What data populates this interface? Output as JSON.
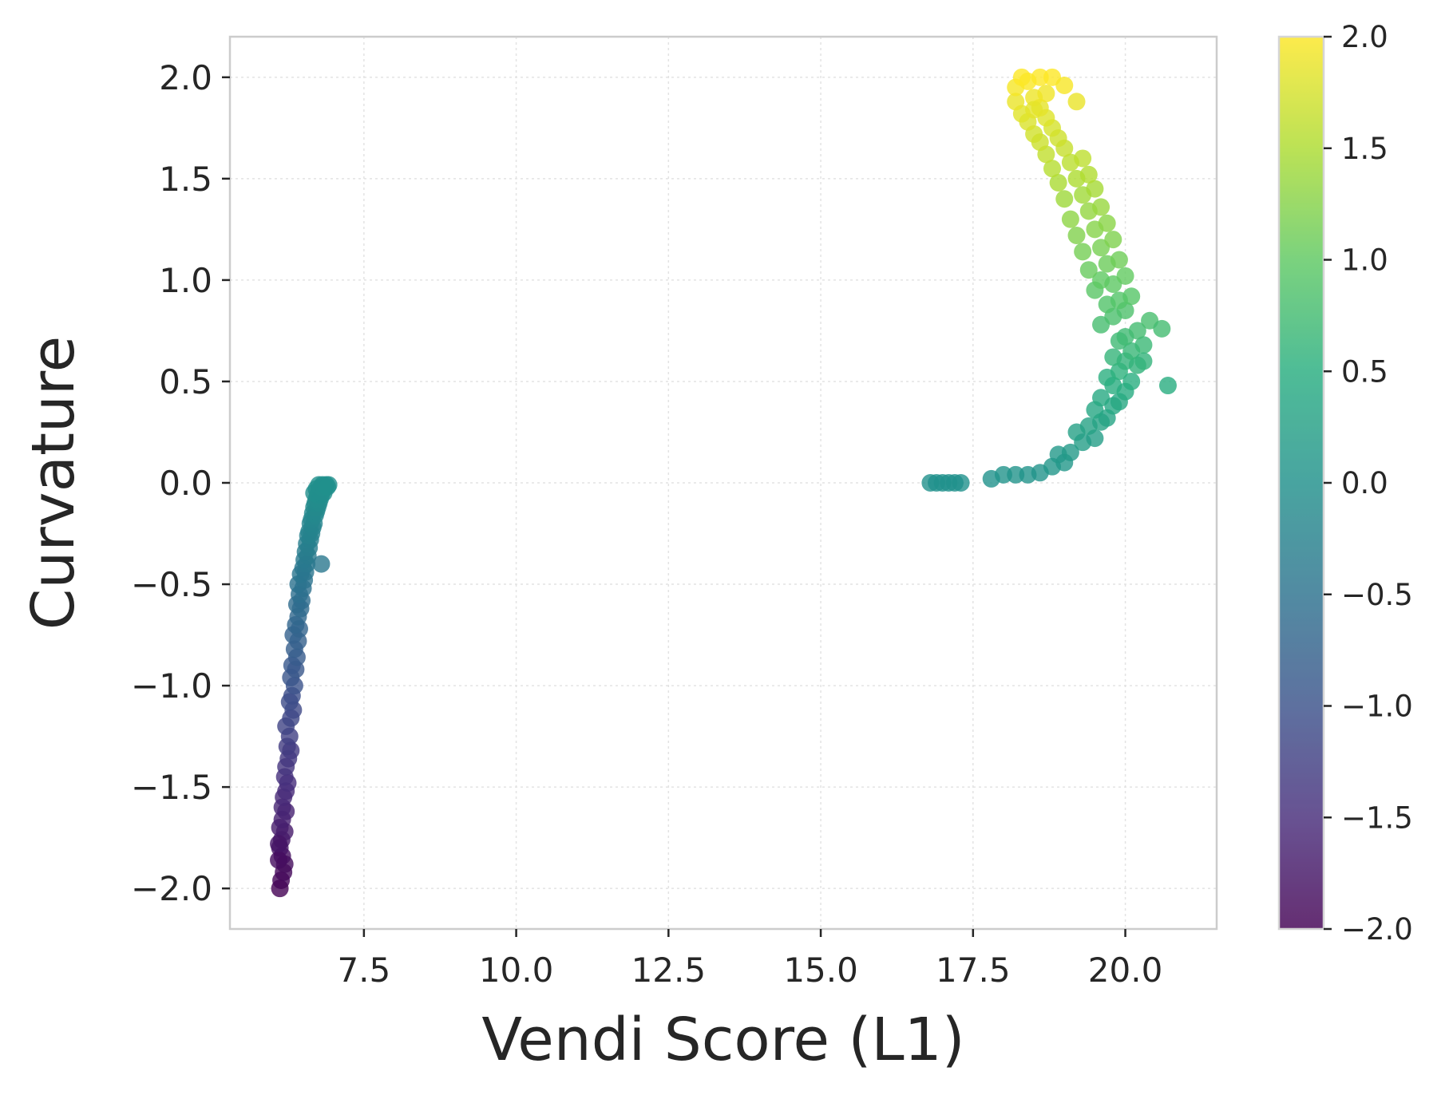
{
  "chart_data": {
    "type": "scatter",
    "title": "",
    "xlabel": "Vendi Score (L1)",
    "ylabel": "Curvature",
    "xlim": [
      5.3,
      21.5
    ],
    "ylim": [
      -2.2,
      2.2
    ],
    "xticks": [
      7.5,
      10.0,
      12.5,
      15.0,
      17.5,
      20.0
    ],
    "xtick_labels": [
      "7.5",
      "10.0",
      "12.5",
      "15.0",
      "17.5",
      "20.0"
    ],
    "yticks": [
      -2.0,
      -1.5,
      -1.0,
      -0.5,
      0.0,
      0.5,
      1.0,
      1.5,
      2.0
    ],
    "ytick_labels": [
      "−2.0",
      "−1.5",
      "−1.0",
      "−0.5",
      "0.0",
      "0.5",
      "1.0",
      "1.5",
      "2.0"
    ],
    "grid": true,
    "colormap": "viridis",
    "color_by": "y",
    "colorbar": {
      "range": [
        -2.0,
        2.0
      ],
      "ticks": [
        -2.0,
        -1.5,
        -1.0,
        -0.5,
        0.0,
        0.5,
        1.0,
        1.5,
        2.0
      ],
      "tick_labels": [
        "−2.0",
        "−1.5",
        "−1.0",
        "−0.5",
        "0.0",
        "0.5",
        "1.0",
        "1.5",
        "2.0"
      ]
    },
    "series": [
      {
        "x": [
          6.12,
          6.14,
          6.18,
          6.2,
          6.16,
          6.12,
          6.1,
          6.15,
          6.2,
          6.12,
          6.1,
          6.16,
          6.22,
          6.16,
          6.18,
          6.22,
          6.25,
          6.2,
          6.22,
          6.26,
          6.3,
          6.24,
          6.28,
          6.22,
          6.3,
          6.34,
          6.28,
          6.32,
          6.36,
          6.3,
          6.38,
          6.32,
          6.4,
          6.36,
          6.42,
          6.34,
          6.44,
          6.38,
          6.42,
          6.46,
          6.4,
          6.48,
          6.44,
          6.5,
          6.42,
          6.52,
          6.46,
          6.54,
          6.5,
          6.56,
          6.52,
          6.58,
          6.54,
          6.6,
          6.56,
          6.62,
          6.58,
          6.64,
          6.6,
          6.66,
          6.62,
          6.68,
          6.64,
          6.7,
          6.66,
          6.72,
          6.68,
          6.74,
          6.7,
          6.76,
          6.72,
          6.78,
          6.74,
          6.8,
          6.68,
          6.76,
          6.82,
          6.78,
          6.72,
          6.84,
          6.8,
          6.86,
          6.76,
          6.82,
          6.88,
          6.78,
          6.84,
          6.9,
          6.8,
          6.92
        ],
        "y": [
          -2.0,
          -1.96,
          -1.92,
          -1.88,
          -1.84,
          -1.8,
          -1.86,
          -1.76,
          -1.72,
          -1.7,
          -1.78,
          -1.66,
          -1.62,
          -1.6,
          -1.55,
          -1.52,
          -1.48,
          -1.45,
          -1.4,
          -1.36,
          -1.32,
          -1.3,
          -1.25,
          -1.2,
          -1.16,
          -1.12,
          -1.08,
          -1.05,
          -1.0,
          -0.96,
          -0.92,
          -0.9,
          -0.86,
          -0.82,
          -0.78,
          -0.75,
          -0.72,
          -0.7,
          -0.66,
          -0.62,
          -0.6,
          -0.58,
          -0.55,
          -0.52,
          -0.5,
          -0.48,
          -0.45,
          -0.44,
          -0.42,
          -0.4,
          -0.38,
          -0.36,
          -0.34,
          -0.32,
          -0.3,
          -0.28,
          -0.26,
          -0.25,
          -0.24,
          -0.22,
          -0.2,
          -0.2,
          -0.18,
          -0.16,
          -0.15,
          -0.14,
          -0.12,
          -0.12,
          -0.1,
          -0.1,
          -0.08,
          -0.08,
          -0.06,
          -0.06,
          -0.05,
          -0.04,
          -0.04,
          -0.03,
          -0.03,
          -0.02,
          -0.02,
          -0.02,
          -0.01,
          -0.01,
          -0.01,
          -0.03,
          -0.05,
          -0.02,
          -0.4,
          -0.01
        ]
      },
      {
        "x": [
          16.8,
          16.9,
          17.0,
          17.1,
          17.2,
          17.3,
          17.8,
          18.0,
          18.2,
          18.4,
          18.6,
          18.8,
          19.0,
          18.9,
          19.1,
          19.3,
          19.5,
          19.2,
          19.4,
          19.6,
          19.7,
          19.5,
          19.8,
          19.9,
          19.6,
          20.0,
          19.8,
          20.1,
          19.7,
          19.9,
          20.2,
          20.0,
          19.8,
          20.1,
          20.3,
          19.9,
          20.0,
          20.2,
          20.4,
          20.3,
          20.6,
          20.7,
          19.6,
          19.8,
          20.0,
          19.7,
          19.9,
          20.1,
          19.5,
          19.8,
          19.6,
          20.0,
          19.4,
          19.7,
          19.9,
          19.3,
          19.6,
          19.8,
          19.2,
          19.5,
          19.7,
          19.1,
          19.4,
          19.6,
          19.0,
          19.3,
          19.5,
          18.9,
          19.2,
          19.4,
          18.8,
          19.1,
          19.3,
          18.7,
          19.0,
          18.6,
          18.9,
          18.5,
          18.8,
          18.4,
          18.7,
          18.3,
          18.6,
          18.2,
          18.5,
          18.2,
          18.4,
          18.6,
          18.8,
          19.2,
          18.3,
          18.7,
          19.0,
          18.5
        ],
        "y": [
          0.0,
          0.0,
          0.0,
          0.0,
          0.0,
          0.0,
          0.02,
          0.04,
          0.04,
          0.04,
          0.05,
          0.08,
          0.1,
          0.14,
          0.15,
          0.2,
          0.22,
          0.25,
          0.28,
          0.3,
          0.32,
          0.36,
          0.38,
          0.4,
          0.42,
          0.45,
          0.48,
          0.5,
          0.52,
          0.55,
          0.58,
          0.6,
          0.62,
          0.65,
          0.68,
          0.7,
          0.72,
          0.75,
          0.8,
          0.6,
          0.76,
          0.48,
          0.78,
          0.82,
          0.85,
          0.88,
          0.9,
          0.92,
          0.95,
          0.98,
          1.0,
          1.02,
          1.05,
          1.08,
          1.1,
          1.14,
          1.16,
          1.2,
          1.22,
          1.25,
          1.28,
          1.3,
          1.34,
          1.36,
          1.4,
          1.42,
          1.45,
          1.48,
          1.5,
          1.52,
          1.55,
          1.58,
          1.6,
          1.62,
          1.65,
          1.68,
          1.7,
          1.72,
          1.75,
          1.78,
          1.8,
          1.82,
          1.85,
          1.88,
          1.9,
          1.95,
          1.98,
          2.0,
          2.0,
          1.88,
          2.0,
          1.92,
          1.96,
          1.84
        ]
      }
    ]
  }
}
